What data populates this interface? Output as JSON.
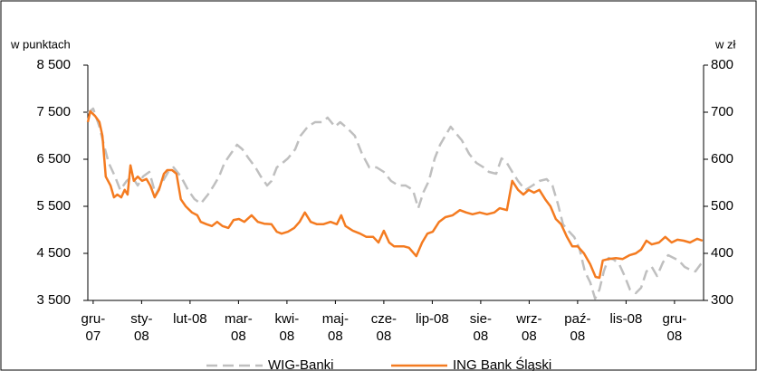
{
  "chart_data": {
    "type": "line",
    "y_axis_label": "w punktach",
    "y2_axis_label": "w zł",
    "xlim": [
      -0.11,
      12.6
    ],
    "xticks": [
      {
        "value": 0,
        "label": "gru-\n07"
      },
      {
        "value": 1,
        "label": "sty-\n08"
      },
      {
        "value": 2,
        "label": "lut-08"
      },
      {
        "value": 3,
        "label": "mar-\n08"
      },
      {
        "value": 4,
        "label": "kwi-\n08"
      },
      {
        "value": 5,
        "label": "maj-\n08"
      },
      {
        "value": 6,
        "label": "cze-\n08"
      },
      {
        "value": 7,
        "label": "lip-08"
      },
      {
        "value": 8,
        "label": "sie-\n08"
      },
      {
        "value": 9,
        "label": "wrz-\n08"
      },
      {
        "value": 10,
        "label": "paź-\n08"
      },
      {
        "value": 11,
        "label": "lis-08"
      },
      {
        "value": 12,
        "label": "gru-\n08"
      }
    ],
    "ylim": [
      3500,
      8500
    ],
    "yticks": [
      {
        "value": 8500,
        "label": "8 500"
      },
      {
        "value": 7500,
        "label": "7 500"
      },
      {
        "value": 6500,
        "label": "6 500"
      },
      {
        "value": 5500,
        "label": "5 500"
      },
      {
        "value": 4500,
        "label": "4 500"
      },
      {
        "value": 3500,
        "label": "3 500"
      }
    ],
    "y2lim": [
      300,
      800
    ],
    "y2ticks": [
      800,
      700,
      600,
      500,
      400,
      300
    ],
    "legend": "bottom",
    "series": [
      {
        "name": "WIG-Banki",
        "color": "#bfbfbf",
        "dash": true,
        "axis": "y",
        "x": [
          -0.11,
          0,
          0.13,
          0.22,
          0.32,
          0.45,
          0.56,
          0.69,
          0.8,
          0.92,
          1.03,
          1.16,
          1.29,
          1.44,
          1.55,
          1.66,
          1.81,
          1.96,
          2.09,
          2.22,
          2.37,
          2.49,
          2.6,
          2.71,
          2.84,
          2.97,
          3.08,
          3.21,
          3.35,
          3.46,
          3.59,
          3.68,
          3.79,
          3.91,
          4.02,
          4.17,
          4.28,
          4.43,
          4.58,
          4.73,
          4.84,
          4.99,
          5.1,
          5.25,
          5.4,
          5.55,
          5.7,
          5.85,
          6.0,
          6.15,
          6.3,
          6.45,
          6.6,
          6.71,
          6.82,
          6.93,
          7.05,
          7.16,
          7.27,
          7.38,
          7.5,
          7.61,
          7.76,
          7.91,
          8.06,
          8.17,
          8.32,
          8.43,
          8.54,
          8.65,
          8.77,
          8.92,
          9.07,
          9.21,
          9.36,
          9.48,
          9.59,
          9.7,
          9.81,
          9.93,
          10.04,
          10.15,
          10.26,
          10.36,
          10.45,
          10.54,
          10.64,
          10.75,
          10.86,
          10.97,
          11.08,
          11.2,
          11.31,
          11.42,
          11.53,
          11.64,
          11.76,
          11.87,
          11.98,
          12.09,
          12.21,
          12.32,
          12.43,
          12.54,
          12.6
        ],
        "values": [
          7481,
          7577,
          7192,
          6808,
          6423,
          6135,
          5846,
          6038,
          6135,
          5942,
          6135,
          6231,
          5750,
          6038,
          6231,
          6327,
          6135,
          5846,
          5654,
          5558,
          5750,
          5942,
          6135,
          6423,
          6615,
          6808,
          6712,
          6519,
          6327,
          6135,
          5942,
          6038,
          6327,
          6423,
          6519,
          6712,
          7000,
          7192,
          7288,
          7288,
          7385,
          7192,
          7288,
          7154,
          7000,
          6615,
          6327,
          6327,
          6231,
          6038,
          5942,
          5942,
          5846,
          5462,
          5808,
          6038,
          6519,
          6808,
          7000,
          7192,
          7038,
          6904,
          6615,
          6423,
          6327,
          6231,
          6192,
          6519,
          6423,
          6231,
          6038,
          5846,
          5942,
          6038,
          6077,
          5942,
          5558,
          5115,
          4981,
          4846,
          4596,
          4115,
          3885,
          3538,
          3731,
          4115,
          4404,
          4365,
          4269,
          4019,
          3731,
          3654,
          3769,
          4115,
          4212,
          4019,
          4308,
          4462,
          4404,
          4346,
          4212,
          4154,
          4115,
          4269,
          4308
        ]
      },
      {
        "name": "ING Bank Śląski",
        "color": "#f47b20",
        "dash": false,
        "axis": "y2",
        "x": [
          -0.11,
          -0.06,
          0.04,
          0.13,
          0.19,
          0.26,
          0.36,
          0.43,
          0.5,
          0.58,
          0.65,
          0.71,
          0.77,
          0.84,
          0.92,
          1.01,
          1.1,
          1.18,
          1.27,
          1.36,
          1.46,
          1.53,
          1.63,
          1.72,
          1.81,
          1.91,
          2.04,
          2.15,
          2.22,
          2.34,
          2.45,
          2.56,
          2.67,
          2.79,
          2.9,
          3.01,
          3.12,
          3.27,
          3.4,
          3.53,
          3.68,
          3.79,
          3.89,
          4.02,
          4.15,
          4.26,
          4.37,
          4.49,
          4.62,
          4.75,
          4.9,
          5.03,
          5.12,
          5.21,
          5.36,
          5.51,
          5.64,
          5.78,
          5.89,
          6.0,
          6.11,
          6.21,
          6.3,
          6.41,
          6.52,
          6.67,
          6.79,
          6.9,
          7.01,
          7.14,
          7.27,
          7.42,
          7.57,
          7.7,
          7.83,
          7.98,
          8.13,
          8.28,
          8.39,
          8.54,
          8.65,
          8.77,
          8.88,
          8.99,
          9.1,
          9.21,
          9.33,
          9.44,
          9.55,
          9.66,
          9.78,
          9.89,
          10.0,
          10.13,
          10.26,
          10.37,
          10.45,
          10.52,
          10.64,
          10.79,
          10.93,
          11.07,
          11.2,
          11.31,
          11.42,
          11.53,
          11.68,
          11.81,
          11.94,
          12.06,
          12.19,
          12.32,
          12.47,
          12.58
        ],
        "values": [
          679,
          702,
          692,
          679,
          650,
          563,
          544,
          519,
          525,
          519,
          535,
          525,
          587,
          554,
          563,
          554,
          558,
          544,
          519,
          535,
          569,
          577,
          577,
          569,
          515,
          500,
          487,
          481,
          467,
          462,
          458,
          467,
          458,
          454,
          471,
          473,
          467,
          481,
          467,
          463,
          462,
          446,
          442,
          446,
          454,
          467,
          487,
          467,
          462,
          462,
          467,
          462,
          481,
          458,
          448,
          442,
          435,
          435,
          423,
          448,
          423,
          415,
          415,
          415,
          412,
          394,
          423,
          442,
          446,
          467,
          477,
          481,
          492,
          487,
          483,
          487,
          483,
          487,
          496,
          492,
          554,
          535,
          525,
          535,
          529,
          535,
          515,
          500,
          473,
          462,
          435,
          415,
          415,
          400,
          377,
          350,
          348,
          385,
          388,
          390,
          388,
          396,
          400,
          408,
          427,
          419,
          423,
          435,
          423,
          429,
          427,
          423,
          431,
          427
        ]
      }
    ]
  }
}
